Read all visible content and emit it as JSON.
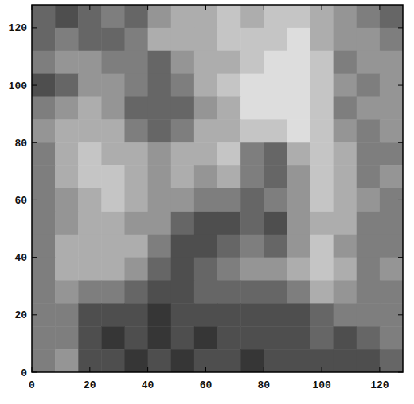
{
  "chart_data": {
    "type": "heatmap",
    "color": "gray",
    "xlim": [
      0,
      128
    ],
    "ylim": [
      0,
      128
    ],
    "xticks": [
      0,
      20,
      40,
      60,
      80,
      100,
      120
    ],
    "yticks": [
      0,
      20,
      40,
      60,
      80,
      100,
      120
    ],
    "zlim": [
      0,
      9
    ],
    "cells": [
      [
        3,
        2,
        3,
        4,
        3,
        5,
        6,
        6,
        7,
        6,
        7,
        7,
        6,
        5,
        4,
        3
      ],
      [
        3,
        4,
        3,
        3,
        4,
        6,
        6,
        6,
        7,
        7,
        7,
        8,
        6,
        5,
        5,
        4
      ],
      [
        4,
        5,
        5,
        4,
        4,
        3,
        5,
        6,
        6,
        7,
        8,
        8,
        7,
        4,
        5,
        5
      ],
      [
        2,
        3,
        5,
        5,
        4,
        3,
        4,
        6,
        7,
        8,
        8,
        8,
        7,
        5,
        4,
        5
      ],
      [
        4,
        5,
        6,
        5,
        3,
        3,
        3,
        5,
        6,
        8,
        8,
        8,
        7,
        4,
        5,
        5
      ],
      [
        5,
        6,
        6,
        6,
        4,
        3,
        4,
        6,
        6,
        7,
        7,
        8,
        7,
        5,
        4,
        5
      ],
      [
        4,
        6,
        7,
        6,
        6,
        5,
        6,
        6,
        7,
        4,
        3,
        6,
        7,
        6,
        4,
        4
      ],
      [
        4,
        6,
        7,
        7,
        6,
        5,
        6,
        5,
        6,
        4,
        3,
        5,
        7,
        6,
        4,
        5
      ],
      [
        4,
        5,
        6,
        7,
        6,
        5,
        5,
        4,
        4,
        3,
        4,
        5,
        7,
        6,
        5,
        4
      ],
      [
        4,
        5,
        6,
        6,
        5,
        5,
        3,
        2,
        2,
        3,
        2,
        5,
        6,
        6,
        4,
        4
      ],
      [
        4,
        6,
        6,
        6,
        6,
        4,
        2,
        2,
        3,
        4,
        3,
        5,
        7,
        5,
        4,
        4
      ],
      [
        4,
        6,
        6,
        6,
        5,
        3,
        2,
        3,
        4,
        5,
        5,
        6,
        7,
        6,
        4,
        5
      ],
      [
        4,
        5,
        4,
        4,
        3,
        2,
        2,
        3,
        3,
        3,
        3,
        4,
        6,
        5,
        4,
        4
      ],
      [
        4,
        4,
        2,
        2,
        2,
        1,
        2,
        2,
        2,
        2,
        2,
        2,
        3,
        4,
        4,
        4
      ],
      [
        4,
        4,
        2,
        1,
        2,
        1,
        2,
        1,
        2,
        2,
        2,
        2,
        3,
        2,
        3,
        4
      ],
      [
        4,
        5,
        2,
        2,
        1,
        2,
        1,
        2,
        2,
        1,
        2,
        2,
        2,
        2,
        2,
        3
      ]
    ]
  }
}
